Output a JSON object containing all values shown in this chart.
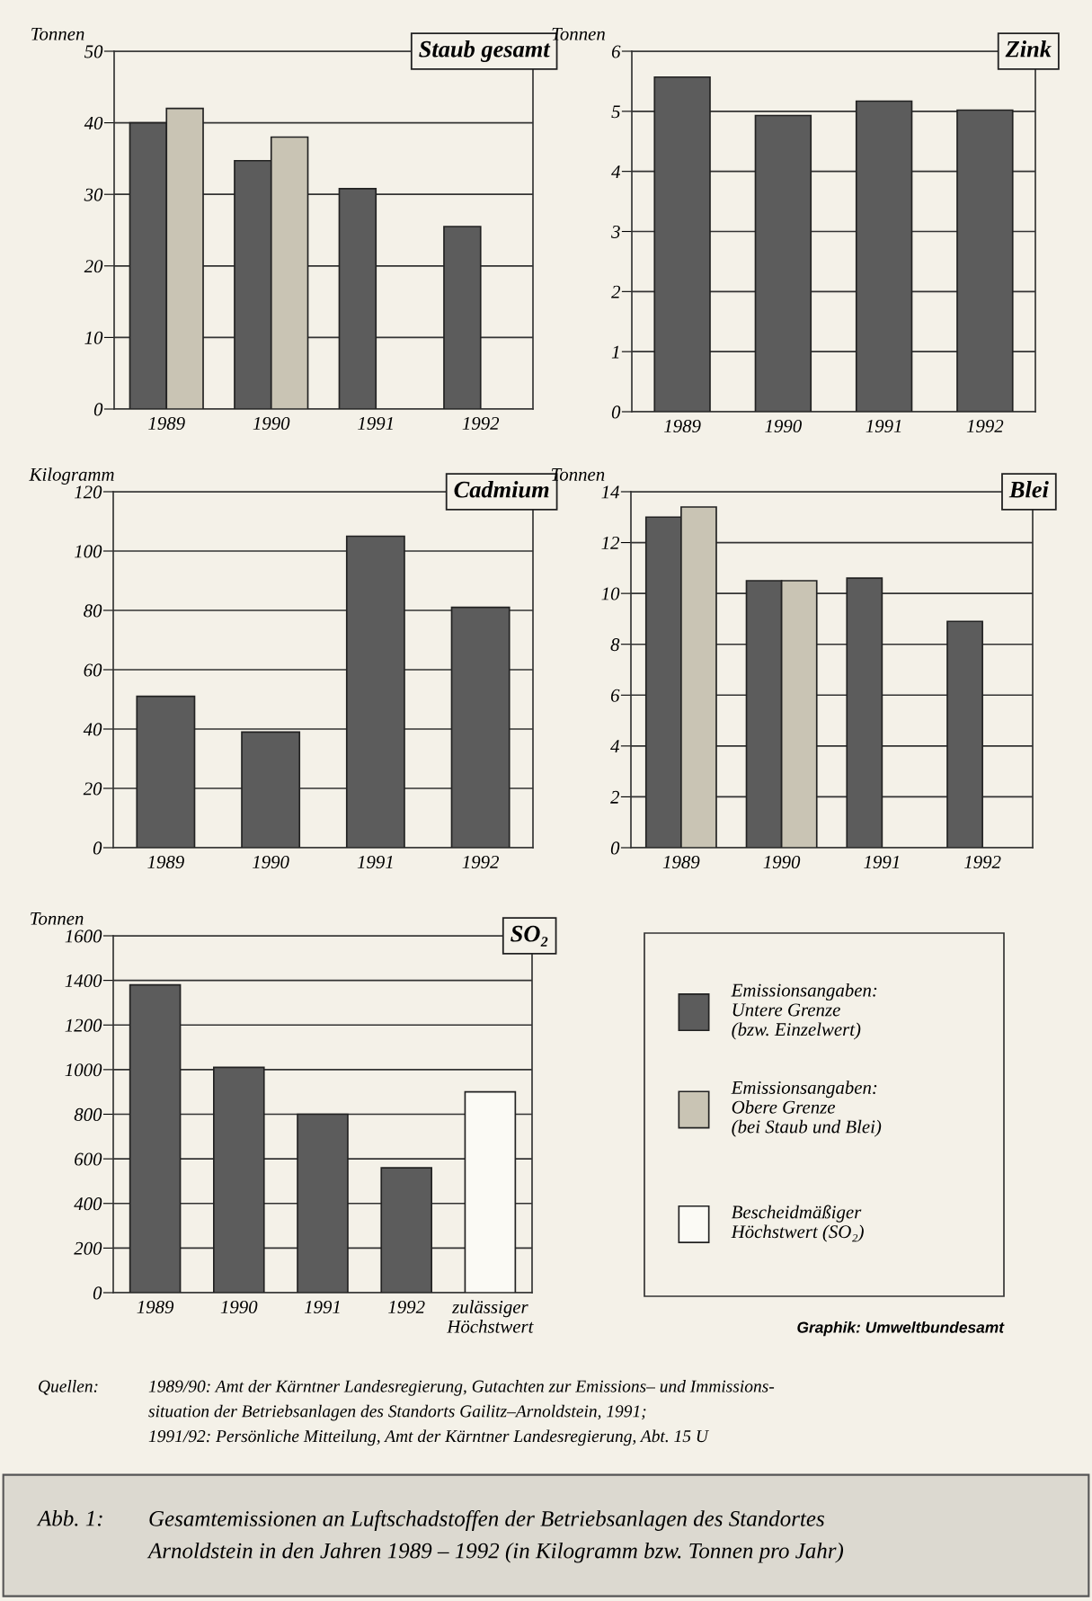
{
  "chart_data": [
    {
      "type": "bar",
      "title": "Staub gesamt",
      "ylabel": "Tonnen",
      "categories": [
        "1989",
        "1990",
        "1991",
        "1992"
      ],
      "ylim": [
        0,
        50
      ],
      "yticks": [
        0,
        10,
        20,
        30,
        40,
        50
      ],
      "grid": "y",
      "legend": "bottom right",
      "series": [
        {
          "name": "Emissionsangaben:\nUntere Grenze\n(bzw. Einzelwert)",
          "color": "#5c5c5c",
          "values": [
            40,
            34.7,
            30.8,
            25.5
          ]
        },
        {
          "name": "Emissionsangaben:\nObere Grenze\n(bei Staub und Blei)",
          "color": "#c9c4b4",
          "values": [
            42,
            38,
            null,
            null
          ]
        }
      ]
    },
    {
      "type": "bar",
      "title": "Zink",
      "ylabel": "Tonnen",
      "categories": [
        "1989",
        "1990",
        "1991",
        "1992"
      ],
      "ylim": [
        0,
        6
      ],
      "yticks": [
        0,
        1,
        2,
        3,
        4,
        5,
        6
      ],
      "grid": "y",
      "series": [
        {
          "color": "#5c5c5c",
          "values": [
            5.57,
            4.93,
            5.17,
            5.02
          ]
        }
      ]
    },
    {
      "type": "bar",
      "title": "Cadmium",
      "ylabel": "Kilogramm",
      "categories": [
        "1989",
        "1990",
        "1991",
        "1992"
      ],
      "ylim": [
        0,
        120
      ],
      "yticks": [
        0,
        20,
        40,
        60,
        80,
        100,
        120
      ],
      "grid": "y",
      "series": [
        {
          "color": "#5c5c5c",
          "values": [
            51,
            39,
            105,
            81
          ]
        }
      ]
    },
    {
      "type": "bar",
      "title": "Blei",
      "ylabel": "Tonnen",
      "categories": [
        "1989",
        "1990",
        "1991",
        "1992"
      ],
      "ylim": [
        0,
        14
      ],
      "yticks": [
        0,
        2,
        4,
        6,
        8,
        10,
        12,
        14
      ],
      "grid": "y",
      "series": [
        {
          "color": "#5c5c5c",
          "values": [
            13.0,
            10.5,
            10.6,
            8.9
          ]
        },
        {
          "color": "#c9c4b4",
          "values": [
            13.4,
            10.5,
            null,
            null
          ]
        }
      ]
    },
    {
      "type": "bar",
      "title": "SO₂",
      "ylabel": "Tonnen",
      "categories": [
        "1989",
        "1990",
        "1991",
        "1992",
        "zulässiger\nHöchstwert"
      ],
      "ylim": [
        0,
        1600
      ],
      "yticks": [
        0,
        200,
        400,
        600,
        800,
        1000,
        1200,
        1400,
        1600
      ],
      "grid": "y",
      "stacked": true,
      "legend": "right",
      "series": [
        {
          "color": "#5c5c5c",
          "values": [
            1380,
            1010,
            800,
            560,
            null
          ]
        },
        {
          "name": "Bescheidmäßiger\nHöchstwert (SO₂)",
          "color": "#fbfaf5",
          "values": [
            null,
            null,
            null,
            null,
            900
          ]
        }
      ],
      "annotations": [
        "Graphik: Umweltbundesamt",
        "Quellen:",
        "1989/90: Amt der Kärntner Landesregierung, Gutachten zur Emissions– und Immissions-\nsituation der Betriebsanlagen des Standorts Gailitz–Arnoldstein, 1991;\n1991/92: Persönliche Mitteilung, Amt der Kärntner Landesregierung, Abt. 15 U",
        "Abb. 1:",
        "Gesamtemissionen an Luftschadstoffen der Betriebsanlagen des Standortes\nArnoldstein in den Jahren 1989 – 1992 (in Kilogramm bzw. Tonnen pro Jahr)"
      ]
    }
  ]
}
